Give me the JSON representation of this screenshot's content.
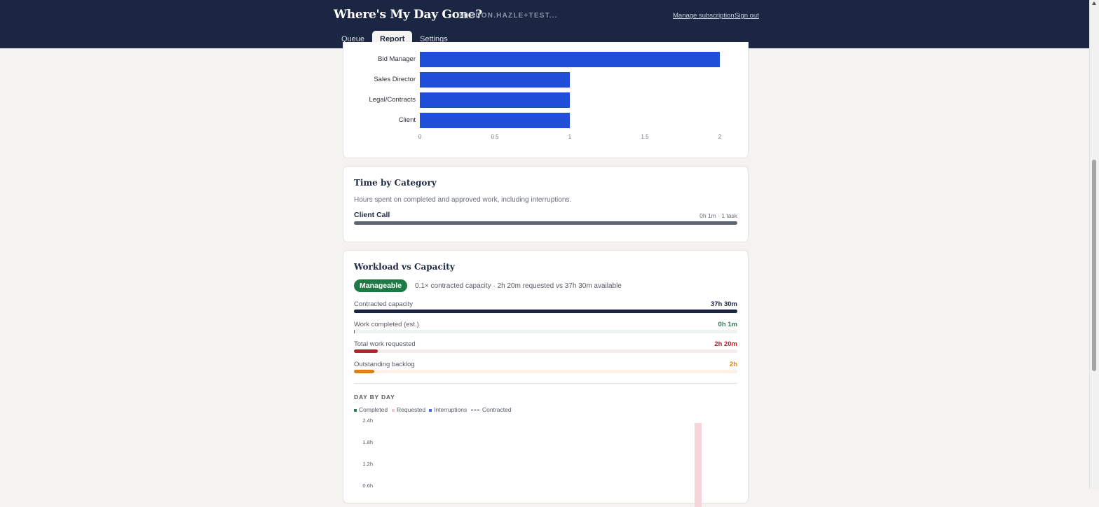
{
  "header": {
    "app_title": "Where's My Day Gone?",
    "user_email": "GORDON.HAZLE+TEST...",
    "manage_subscription": "Manage subscription",
    "sign_out": "Sign out",
    "tabs": [
      {
        "label": "Queue",
        "active": false
      },
      {
        "label": "Report",
        "active": true
      },
      {
        "label": "Settings",
        "active": false
      }
    ]
  },
  "chart_data": {
    "type": "bar",
    "orientation": "horizontal",
    "categories": [
      "Bid Manager",
      "Sales Director",
      "Legal/Contracts",
      "Client"
    ],
    "values": [
      2,
      1,
      1,
      1
    ],
    "x_ticks": [
      "0",
      "0.5",
      "1",
      "1.5",
      "2"
    ],
    "xlim": [
      0,
      2
    ],
    "bar_color": "#1f4fd8"
  },
  "time_by_category": {
    "title": "Time by Category",
    "subtitle": "Hours spent on completed and approved work, including interruptions.",
    "items": [
      {
        "label": "Client Call",
        "meta": "0h 1m · 1 task",
        "fraction": 1.0
      }
    ]
  },
  "workload": {
    "title": "Workload vs Capacity",
    "status": "Manageable",
    "summary": "0.1× contracted capacity · 2h 20m requested vs 37h 30m available",
    "meters": [
      {
        "label": "Contracted capacity",
        "value": "37h 30m",
        "fraction": 1.0,
        "color": "#1b2742",
        "track": "#1b2742"
      },
      {
        "label": "Work completed (est.)",
        "value": "0h 1m",
        "fraction": 0.001,
        "color": "#2f7a52",
        "track": "#eef3ef"
      },
      {
        "label": "Total work requested",
        "value": "2h 20m",
        "fraction": 0.062,
        "color": "#b3242f",
        "track": "#f7ecec"
      },
      {
        "label": "Outstanding backlog",
        "value": "2h",
        "fraction": 0.053,
        "color": "#d98117",
        "track": "#fbf1e6"
      }
    ],
    "day_by_day": {
      "heading": "DAY BY DAY",
      "legend": [
        {
          "label": "Completed",
          "color": "#2f7a52"
        },
        {
          "label": "Requested",
          "color": "#f2c9d0"
        },
        {
          "label": "Interruptions",
          "color": "#4a63d8"
        },
        {
          "label": "Contracted",
          "color": "#1b2742"
        }
      ],
      "y_ticks": [
        "2.4h",
        "1.8h",
        "1.2h",
        "0.6h"
      ]
    }
  }
}
